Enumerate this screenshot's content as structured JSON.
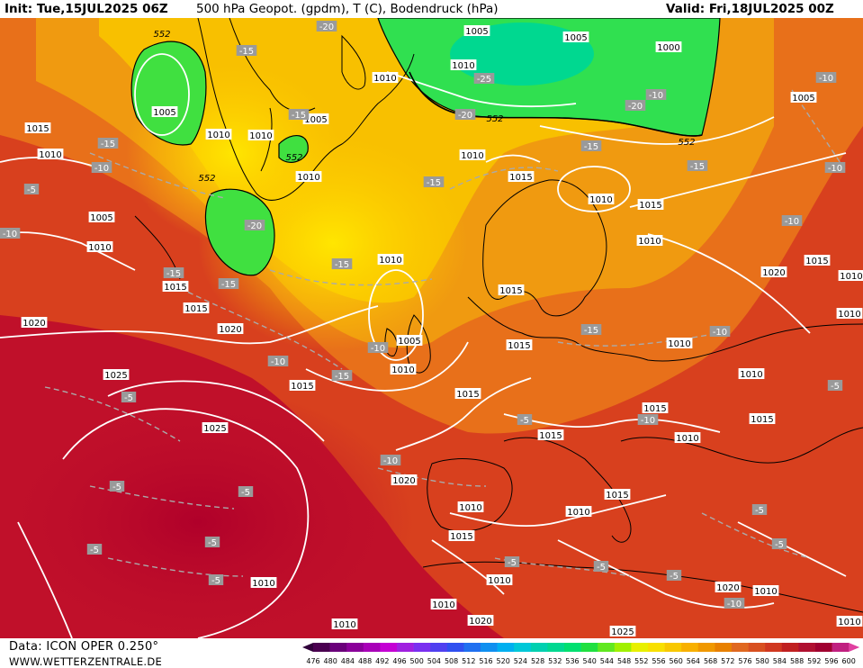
{
  "header": {
    "init": "Init: Tue,15JUL2025 06Z",
    "title": "500 hPa Geopot. (gpdm), T (C), Bodendruck (hPa)",
    "valid": "Valid: Fri,18JUL2025 00Z"
  },
  "footer": {
    "data": "Data: ICON OPER 0.250°",
    "site": "WWW.WETTERZENTRALE.DE"
  },
  "legend": {
    "ticks": [
      "476",
      "480",
      "484",
      "488",
      "492",
      "496",
      "500",
      "504",
      "508",
      "512",
      "516",
      "520",
      "524",
      "528",
      "532",
      "536",
      "540",
      "544",
      "548",
      "552",
      "556",
      "560",
      "564",
      "568",
      "572",
      "576",
      "580",
      "584",
      "588",
      "592",
      "596",
      "600"
    ],
    "colors": [
      "#4a0050",
      "#6a007a",
      "#8a009a",
      "#a800b8",
      "#c400d4",
      "#a020e0",
      "#7a30f0",
      "#5040f0",
      "#3050f0",
      "#2070f0",
      "#1090f0",
      "#00b0f0",
      "#00c8d8",
      "#00d0b0",
      "#00d890",
      "#00e070",
      "#20e040",
      "#60e820",
      "#a0f000",
      "#e8f000",
      "#f8e000",
      "#f8c800",
      "#f8b000",
      "#f09800",
      "#e88000",
      "#e06820",
      "#d85020",
      "#d03820",
      "#c02020",
      "#b01030",
      "#a00030",
      "#c02080"
    ]
  },
  "map": {
    "pressure_labels": [
      "1005",
      "1005",
      "1010",
      "1005",
      "1000",
      "1005",
      "1005",
      "1015",
      "1010",
      "1010",
      "1010",
      "1010",
      "1005",
      "1010",
      "1015",
      "1010",
      "1010",
      "1015",
      "1020",
      "1015",
      "1010",
      "1015",
      "1010",
      "1010",
      "1015",
      "1015",
      "1020",
      "1020",
      "1005",
      "1010",
      "1015",
      "1015",
      "1010",
      "1015",
      "1010",
      "1025",
      "1025",
      "1015",
      "1010",
      "1015",
      "1020",
      "1010",
      "1015",
      "1015",
      "1015",
      "1010",
      "1010",
      "1010",
      "1020",
      "1020",
      "1010",
      "1010",
      "1010",
      "1025",
      "1010",
      "1010",
      "1010"
    ],
    "temperature_labels": [
      "-20",
      "-15",
      "-15",
      "-10",
      "-15",
      "-20",
      "-25",
      "-20",
      "-20",
      "-10",
      "-10",
      "-15",
      "-10",
      "-15",
      "-15",
      "-10",
      "-15",
      "-15",
      "-15",
      "-10",
      "-15",
      "-10",
      "-10",
      "-15",
      "-5",
      "-10",
      "-10",
      "-5",
      "-5",
      "-5",
      "-5",
      "-5",
      "-5",
      "-10",
      "-5",
      "-5",
      "-5",
      "-5",
      "-5",
      "-5",
      "-10",
      "-5"
    ],
    "geopot_labels": [
      "552",
      "552",
      "552",
      "552",
      "552"
    ]
  }
}
